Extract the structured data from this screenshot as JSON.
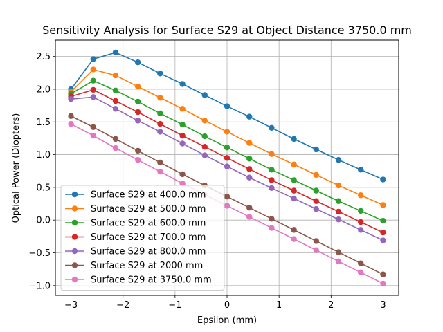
{
  "chart_data": {
    "type": "line",
    "title": "Sensitivity Analysis for Surface S29 at Object Distance 3750.0 mm",
    "xlabel": "Epsilon (mm)",
    "ylabel": "Optical Power (Diopters)",
    "xlim": [
      -3.3,
      3.3
    ],
    "ylim": [
      -1.15,
      2.75
    ],
    "xticks": [
      -3,
      -2,
      -1,
      0,
      1,
      2,
      3
    ],
    "xtick_labels": [
      "−3",
      "−2",
      "−1",
      "0",
      "1",
      "2",
      "3"
    ],
    "yticks": [
      -1.0,
      -0.5,
      0.0,
      0.5,
      1.0,
      1.5,
      2.0,
      2.5
    ],
    "ytick_labels": [
      "−1.0",
      "−0.5",
      "0.0",
      "0.5",
      "1.0",
      "1.5",
      "2.0",
      "2.5"
    ],
    "grid": true,
    "legend_position": "lower-left",
    "x": [
      -3.0,
      -2.571,
      -2.143,
      -1.714,
      -1.286,
      -0.857,
      -0.429,
      0.0,
      0.429,
      0.857,
      1.286,
      1.714,
      2.143,
      2.571,
      3.0
    ],
    "series": [
      {
        "name": "Surface S29 at 400.0 mm",
        "color": "#1f77b4",
        "values": [
          2.0,
          2.46,
          2.56,
          2.41,
          2.24,
          2.08,
          1.91,
          1.74,
          1.58,
          1.41,
          1.24,
          1.08,
          0.92,
          0.77,
          0.62
        ]
      },
      {
        "name": "Surface S29 at 500.0 mm",
        "color": "#ff7f0e",
        "values": [
          1.96,
          2.3,
          2.21,
          2.04,
          1.87,
          1.7,
          1.52,
          1.35,
          1.18,
          1.01,
          0.85,
          0.69,
          0.53,
          0.38,
          0.23
        ]
      },
      {
        "name": "Surface S29 at 600.0 mm",
        "color": "#2ca02c",
        "values": [
          1.93,
          2.13,
          1.98,
          1.81,
          1.63,
          1.46,
          1.28,
          1.11,
          0.94,
          0.77,
          0.61,
          0.45,
          0.29,
          0.14,
          -0.01
        ]
      },
      {
        "name": "Surface S29 at 700.0 mm",
        "color": "#d62728",
        "values": [
          1.89,
          1.99,
          1.82,
          1.65,
          1.47,
          1.29,
          1.12,
          0.95,
          0.78,
          0.61,
          0.45,
          0.29,
          0.13,
          -0.03,
          -0.19
        ]
      },
      {
        "name": "Surface S29 at 800.0 mm",
        "color": "#9467bd",
        "values": [
          1.85,
          1.88,
          1.7,
          1.52,
          1.35,
          1.17,
          0.99,
          0.82,
          0.65,
          0.49,
          0.33,
          0.17,
          0.01,
          -0.15,
          -0.31
        ]
      },
      {
        "name": "Surface S29 at 2000 mm",
        "color": "#8c564b",
        "values": [
          1.59,
          1.42,
          1.24,
          1.06,
          0.88,
          0.7,
          0.53,
          0.36,
          0.19,
          0.02,
          -0.15,
          -0.32,
          -0.49,
          -0.66,
          -0.83
        ]
      },
      {
        "name": "Surface S29 at 3750.0 mm",
        "color": "#e377c2",
        "values": [
          1.47,
          1.29,
          1.1,
          0.92,
          0.74,
          0.56,
          0.39,
          0.22,
          0.05,
          -0.12,
          -0.29,
          -0.46,
          -0.63,
          -0.8,
          -0.97
        ]
      }
    ]
  }
}
